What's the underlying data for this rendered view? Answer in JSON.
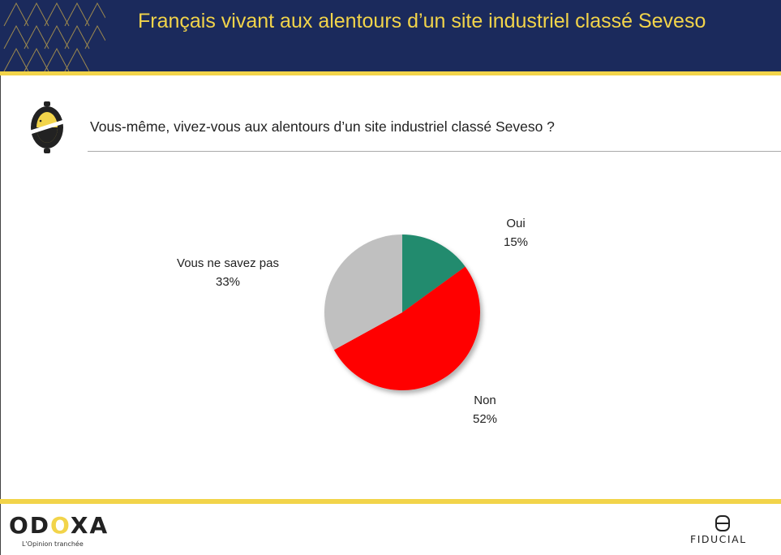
{
  "header": {
    "title": "Français vivant aux alentours d’un site industriel classé Seveso"
  },
  "question": {
    "text": "Vous-même, vivez-vous aux alentours d’un site industriel classé Seveso ?"
  },
  "chart_data": {
    "type": "pie",
    "title": "",
    "slices": [
      {
        "label": "Oui",
        "value": 15,
        "value_label": "15%",
        "color": "#228b6e"
      },
      {
        "label": "Non",
        "value": 52,
        "value_label": "52%",
        "color": "#ff0000"
      },
      {
        "label": "Vous ne savez pas",
        "value": 33,
        "value_label": "33%",
        "color": "#c0c0c0"
      }
    ],
    "start_angle": "12 o'clock",
    "direction": "clockwise"
  },
  "footer": {
    "brand_left": {
      "name_parts": [
        "OD",
        "O",
        "XA"
      ],
      "tagline": "L'Opinion tranchée"
    },
    "brand_right": {
      "name": "FIDUCIAL"
    }
  },
  "colors": {
    "navy": "#1b2a5c",
    "yellow": "#f2d44a"
  }
}
